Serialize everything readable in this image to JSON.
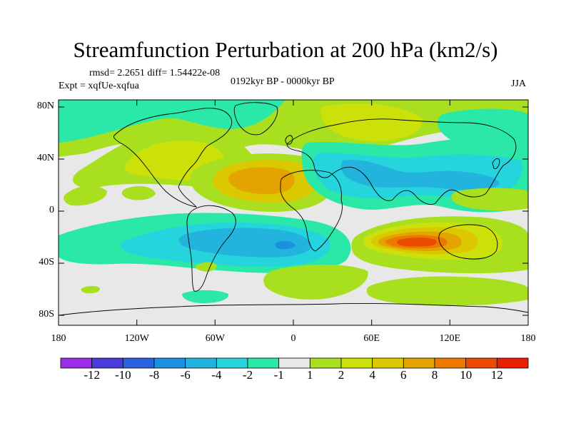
{
  "title": "Streamfunction Perturbation at 200 hPa (km2/s)",
  "stats": "rmsd= 2.2651 diff= 1.54422e-08",
  "experiment": "Expt = xqfUe-xqfua",
  "period": "0192kyr BP - 0000kyr BP",
  "season": "JJA",
  "lat_labels": [
    "80N",
    "40N",
    "0",
    "40S",
    "80S"
  ],
  "lon_labels": [
    "180",
    "120W",
    "60W",
    "0",
    "60E",
    "120E",
    "180"
  ],
  "colorbar": {
    "labels": [
      "-12",
      "-10",
      "-8",
      "-6",
      "-4",
      "-2",
      "-1",
      "1",
      "2",
      "4",
      "6",
      "8",
      "10",
      "12"
    ],
    "colors": [
      "#9a2ee8",
      "#4a3bdc",
      "#2a62e0",
      "#1b8fe0",
      "#22b4dc",
      "#25d4dc",
      "#2ae8a8",
      "#e8e8e8",
      "#a8e020",
      "#cce00a",
      "#dcc800",
      "#e4a400",
      "#ec7a00",
      "#ec4a00",
      "#e82000"
    ]
  },
  "colors": {
    "background": "#ffffff",
    "map_base": "#e8e8e8",
    "coast": "#000000"
  }
}
